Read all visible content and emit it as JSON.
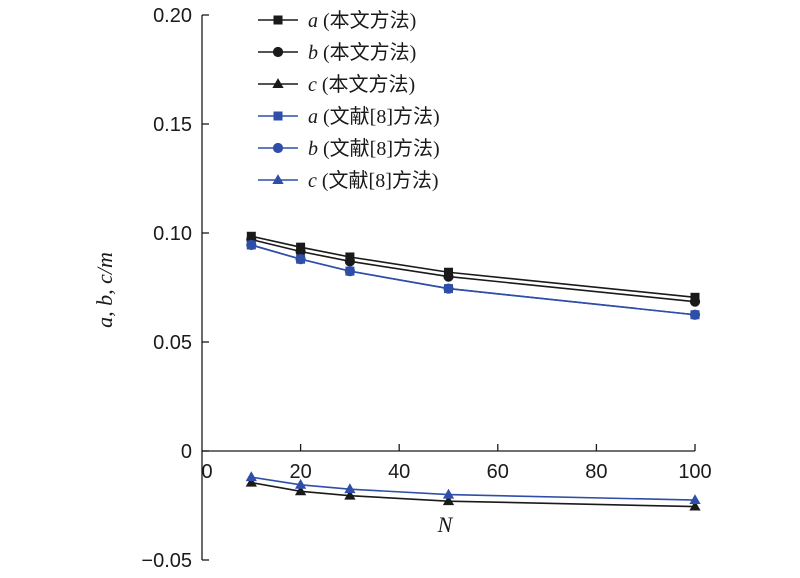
{
  "chart_data": {
    "type": "line",
    "title": "",
    "xlabel": "N",
    "ylabel": "a, b, c/m",
    "xlim": [
      0,
      100
    ],
    "ylim": [
      -0.05,
      0.2
    ],
    "xticks": [
      0,
      20,
      40,
      60,
      80,
      100
    ],
    "yticks": [
      {
        "value": 0.2,
        "label": "0.20"
      },
      {
        "value": 0.15,
        "label": "0.15"
      },
      {
        "value": 0.1,
        "label": "0.10"
      },
      {
        "value": 0.05,
        "label": "0.05"
      },
      {
        "value": 0,
        "label": "0"
      },
      {
        "value": -0.05,
        "label": "−0.05"
      }
    ],
    "x": [
      10,
      20,
      30,
      50,
      100
    ],
    "grid": false,
    "legend_position": "top-right",
    "series": [
      {
        "name": "a",
        "method": "(本文方法)",
        "color": "#1a1a1a",
        "marker": "square",
        "values": [
          0.0985,
          0.0935,
          0.089,
          0.082,
          0.0705
        ]
      },
      {
        "name": "b",
        "method": "(本文方法)",
        "color": "#1a1a1a",
        "marker": "circle",
        "values": [
          0.097,
          0.0915,
          0.087,
          0.08,
          0.0685
        ]
      },
      {
        "name": "c",
        "method": "(本文方法)",
        "color": "#1a1a1a",
        "marker": "triangle",
        "values": [
          -0.0145,
          -0.0185,
          -0.0205,
          -0.023,
          -0.0255
        ]
      },
      {
        "name": "a",
        "method": "(文献[8]方法)",
        "color": "#2e4ea8",
        "marker": "square",
        "values": [
          0.0945,
          0.088,
          0.0825,
          0.0745,
          0.0625
        ]
      },
      {
        "name": "b",
        "method": "(文献[8]方法)",
        "color": "#2e4ea8",
        "marker": "circle",
        "values": [
          0.0945,
          0.088,
          0.0825,
          0.0745,
          0.0625
        ]
      },
      {
        "name": "c",
        "method": "(文献[8]方法)",
        "color": "#2e4ea8",
        "marker": "triangle",
        "values": [
          -0.012,
          -0.0155,
          -0.0175,
          -0.02,
          -0.0225
        ]
      }
    ]
  }
}
